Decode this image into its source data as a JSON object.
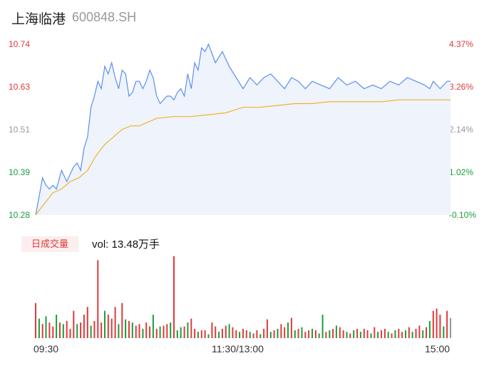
{
  "header": {
    "name": "上海临港",
    "code": "600848.SH"
  },
  "colors": {
    "price": "#5b8ff0",
    "avg": "#f0b429",
    "up": "#e03a3a",
    "down": "#1a9e3c",
    "flat": "#999999",
    "area": "#eef3fc"
  },
  "volume_panel": {
    "badge": "日成交量",
    "vol_label": "vol: 13.48万手"
  },
  "chart_data": {
    "type": "line",
    "title": "",
    "y_ticks_price": [
      "10.74",
      "10.63",
      "10.51",
      "10.39",
      "10.28"
    ],
    "y_ticks_pct": [
      "4.37%",
      "3.26%",
      "2.14%",
      "1.02%",
      "-0.10%"
    ],
    "x_ticks": [
      "09:30",
      "11:30/13:00",
      "15:00"
    ],
    "ylim": [
      10.28,
      10.74
    ],
    "xlim_minutes": [
      0,
      240
    ],
    "series": [
      {
        "name": "price",
        "x": [
          0,
          2,
          4,
          6,
          8,
          10,
          12,
          15,
          18,
          20,
          22,
          24,
          26,
          28,
          30,
          32,
          34,
          36,
          38,
          40,
          42,
          44,
          46,
          48,
          50,
          52,
          54,
          56,
          58,
          60,
          62,
          64,
          66,
          68,
          70,
          72,
          74,
          76,
          78,
          80,
          82,
          84,
          86,
          88,
          90,
          92,
          94,
          96,
          98,
          100,
          104,
          108,
          112,
          116,
          120,
          124,
          128,
          132,
          136,
          140,
          144,
          148,
          152,
          156,
          160,
          165,
          170,
          175,
          180,
          185,
          190,
          195,
          200,
          205,
          210,
          215,
          220,
          225,
          228,
          230,
          232,
          234,
          236,
          238,
          240
        ],
        "y": [
          10.28,
          10.33,
          10.38,
          10.36,
          10.35,
          10.36,
          10.35,
          10.4,
          10.37,
          10.39,
          10.41,
          10.42,
          10.4,
          10.46,
          10.49,
          10.57,
          10.6,
          10.64,
          10.62,
          10.68,
          10.66,
          10.69,
          10.65,
          10.62,
          10.67,
          10.66,
          10.6,
          10.61,
          10.64,
          10.64,
          10.62,
          10.64,
          10.67,
          10.65,
          10.6,
          10.58,
          10.59,
          10.6,
          10.6,
          10.59,
          10.61,
          10.62,
          10.6,
          10.66,
          10.62,
          10.69,
          10.67,
          10.73,
          10.72,
          10.74,
          10.69,
          10.72,
          10.68,
          10.65,
          10.62,
          10.65,
          10.63,
          10.65,
          10.66,
          10.64,
          10.62,
          10.65,
          10.64,
          10.62,
          10.64,
          10.63,
          10.62,
          10.65,
          10.63,
          10.64,
          10.62,
          10.63,
          10.62,
          10.64,
          10.63,
          10.65,
          10.64,
          10.63,
          10.62,
          10.64,
          10.63,
          10.62,
          10.63,
          10.64,
          10.64
        ]
      },
      {
        "name": "avg",
        "x": [
          0,
          5,
          10,
          15,
          20,
          25,
          30,
          35,
          40,
          45,
          50,
          55,
          60,
          65,
          70,
          80,
          90,
          100,
          110,
          120,
          130,
          140,
          150,
          160,
          170,
          180,
          190,
          200,
          210,
          220,
          230,
          240
        ],
        "y": [
          10.28,
          10.31,
          10.34,
          10.35,
          10.37,
          10.38,
          10.4,
          10.44,
          10.47,
          10.49,
          10.51,
          10.52,
          10.52,
          10.53,
          10.54,
          10.545,
          10.545,
          10.55,
          10.555,
          10.57,
          10.57,
          10.575,
          10.58,
          10.58,
          10.585,
          10.585,
          10.585,
          10.585,
          10.59,
          10.59,
          10.59,
          10.59
        ]
      }
    ],
    "volume_series": {
      "name": "volume",
      "x": [
        0,
        2,
        4,
        6,
        8,
        10,
        12,
        14,
        16,
        18,
        20,
        22,
        24,
        26,
        28,
        30,
        32,
        34,
        36,
        38,
        40,
        42,
        44,
        46,
        48,
        50,
        52,
        54,
        56,
        58,
        60,
        62,
        64,
        66,
        68,
        70,
        72,
        74,
        76,
        78,
        80,
        82,
        84,
        86,
        88,
        90,
        92,
        94,
        96,
        98,
        100,
        102,
        104,
        106,
        108,
        110,
        112,
        114,
        116,
        118,
        120,
        122,
        124,
        126,
        128,
        130,
        132,
        134,
        136,
        138,
        140,
        142,
        144,
        146,
        148,
        150,
        152,
        154,
        156,
        158,
        160,
        162,
        164,
        166,
        168,
        170,
        172,
        174,
        176,
        178,
        180,
        182,
        184,
        186,
        188,
        190,
        192,
        194,
        196,
        198,
        200,
        202,
        204,
        206,
        208,
        210,
        212,
        214,
        216,
        218,
        220,
        222,
        224,
        226,
        228,
        230,
        232,
        234,
        236,
        238,
        240
      ],
      "values": [
        45,
        25,
        18,
        28,
        20,
        15,
        30,
        20,
        18,
        22,
        12,
        35,
        18,
        20,
        30,
        40,
        16,
        22,
        100,
        20,
        35,
        30,
        25,
        40,
        18,
        45,
        24,
        22,
        20,
        16,
        18,
        12,
        20,
        15,
        30,
        12,
        15,
        16,
        18,
        20,
        105,
        10,
        14,
        15,
        20,
        25,
        12,
        8,
        10,
        10,
        5,
        20,
        15,
        8,
        12,
        16,
        18,
        14,
        10,
        8,
        12,
        10,
        8,
        6,
        10,
        5,
        12,
        24,
        8,
        10,
        12,
        18,
        14,
        20,
        26,
        10,
        12,
        14,
        8,
        10,
        12,
        10,
        6,
        30,
        8,
        10,
        12,
        16,
        14,
        10,
        8,
        6,
        10,
        12,
        8,
        12,
        10,
        6,
        14,
        8,
        10,
        12,
        8,
        6,
        10,
        12,
        8,
        10,
        14,
        8,
        12,
        16,
        10,
        14,
        22,
        35,
        38,
        30,
        15,
        35,
        26
      ],
      "colors": [
        "up",
        "down",
        "up",
        "down",
        "up",
        "up",
        "down",
        "up",
        "down",
        "up",
        "up",
        "up",
        "down",
        "up",
        "up",
        "up",
        "down",
        "up",
        "up",
        "up",
        "down",
        "up",
        "up",
        "up",
        "down",
        "up",
        "down",
        "up",
        "down",
        "up",
        "up",
        "down",
        "up",
        "up",
        "down",
        "up",
        "down",
        "up",
        "up",
        "down",
        "up",
        "down",
        "down",
        "up",
        "down",
        "up",
        "up",
        "down",
        "up",
        "up",
        "down",
        "up",
        "up",
        "down",
        "up",
        "up",
        "down",
        "up",
        "up",
        "down",
        "up",
        "up",
        "down",
        "up",
        "up",
        "down",
        "up",
        "up",
        "down",
        "up",
        "down",
        "up",
        "up",
        "down",
        "up",
        "down",
        "up",
        "down",
        "up",
        "up",
        "down",
        "up",
        "down",
        "down",
        "up",
        "down",
        "up",
        "down",
        "up",
        "up",
        "down",
        "up",
        "down",
        "up",
        "down",
        "up",
        "up",
        "down",
        "up",
        "down",
        "up",
        "up",
        "down",
        "up",
        "down",
        "up",
        "up",
        "down",
        "up",
        "down",
        "up",
        "up",
        "down",
        "up",
        "down",
        "up",
        "up",
        "up",
        "down",
        "up",
        "flat"
      ]
    }
  }
}
